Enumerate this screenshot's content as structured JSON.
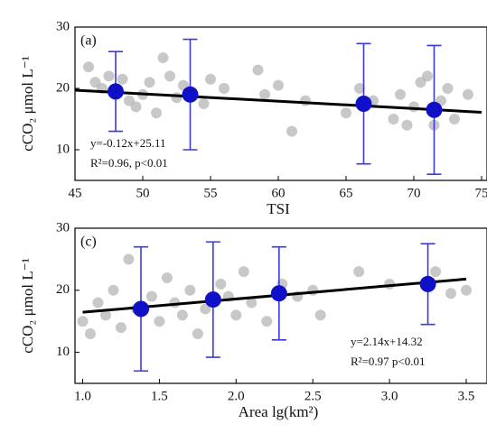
{
  "chart_data": [
    {
      "type": "scatter",
      "label": "(a)",
      "xlabel": "TSI",
      "ylabel": "cCO₂ μmol L⁻¹",
      "equation": "y=-0.12x+25.11",
      "r2_text": "R²=0.96, p<0.01",
      "xlim": [
        45,
        75
      ],
      "xticks": [
        45,
        50,
        55,
        60,
        65,
        70,
        75
      ],
      "ylim": [
        5,
        30
      ],
      "yticks": [
        10,
        20,
        30
      ],
      "points": {
        "color": "#b0b0b0",
        "x": [
          46,
          46.5,
          47,
          47.5,
          48.5,
          49,
          49.5,
          50,
          50.5,
          51,
          51.5,
          52,
          52.5,
          53,
          54.5,
          55,
          56,
          58.5,
          59,
          60,
          61,
          62,
          65,
          66,
          67,
          68.5,
          69,
          69.5,
          70,
          70.5,
          71,
          71.5,
          72,
          72.5,
          73,
          74
        ],
        "y": [
          23.5,
          21,
          20,
          22,
          21.5,
          18,
          17,
          19,
          21,
          16,
          25,
          22,
          18.5,
          20.5,
          17.5,
          21.5,
          20,
          23,
          19,
          20.5,
          13,
          18,
          16,
          20,
          18,
          15,
          19,
          14,
          17,
          21,
          22,
          14,
          18,
          20,
          15,
          19
        ]
      },
      "means": {
        "color": "#1010c8",
        "bar_color": "#3a3ae0",
        "x": [
          48,
          53.5,
          66.3,
          71.5
        ],
        "y": [
          19.5,
          19,
          17.5,
          16.5
        ],
        "errors": [
          6.5,
          9,
          9.8,
          10.5
        ]
      },
      "fit": {
        "color": "#000000",
        "x": [
          45,
          75
        ],
        "y": [
          19.71,
          16.11
        ]
      }
    },
    {
      "type": "scatter",
      "label": "(c)",
      "xlabel": "Area lg(km²)",
      "ylabel": "cCO₂ μmol L⁻¹",
      "equation": "y=2.14x+14.32",
      "r2_text": "R²=0.97 p<0.01",
      "xlim": [
        0.95,
        3.6
      ],
      "xticks": [
        {
          "value": 1,
          "label": "1.0"
        },
        1.5,
        {
          "value": 2,
          "label": "2.0"
        },
        2.5,
        {
          "value": 3,
          "label": "3.0"
        },
        3.5
      ],
      "ylim": [
        5,
        30
      ],
      "yticks": [
        10,
        20,
        30
      ],
      "points": {
        "color": "#b0b0b0",
        "x": [
          1.0,
          1.05,
          1.1,
          1.15,
          1.2,
          1.25,
          1.3,
          1.35,
          1.45,
          1.5,
          1.55,
          1.6,
          1.65,
          1.7,
          1.75,
          1.8,
          1.9,
          1.95,
          2.0,
          2.05,
          2.1,
          2.2,
          2.3,
          2.4,
          2.5,
          2.55,
          2.8,
          3.0,
          3.3,
          3.4,
          3.5
        ],
        "y": [
          15,
          13,
          18,
          16,
          20,
          14,
          25,
          17,
          19,
          15,
          22,
          18,
          16,
          20,
          13,
          17,
          21,
          19,
          16,
          23,
          18,
          15,
          21,
          19,
          20,
          16,
          23,
          21,
          23,
          19.5,
          20
        ]
      },
      "means": {
        "color": "#1010c8",
        "bar_color": "#3a3ae0",
        "x": [
          1.38,
          1.85,
          2.28,
          3.25
        ],
        "y": [
          17,
          18.5,
          19.5,
          21
        ],
        "errors": [
          10,
          9.3,
          7.5,
          6.5
        ]
      },
      "fit": {
        "color": "#000000",
        "x": [
          1.0,
          3.5
        ],
        "y": [
          16.46,
          21.81
        ]
      }
    }
  ]
}
